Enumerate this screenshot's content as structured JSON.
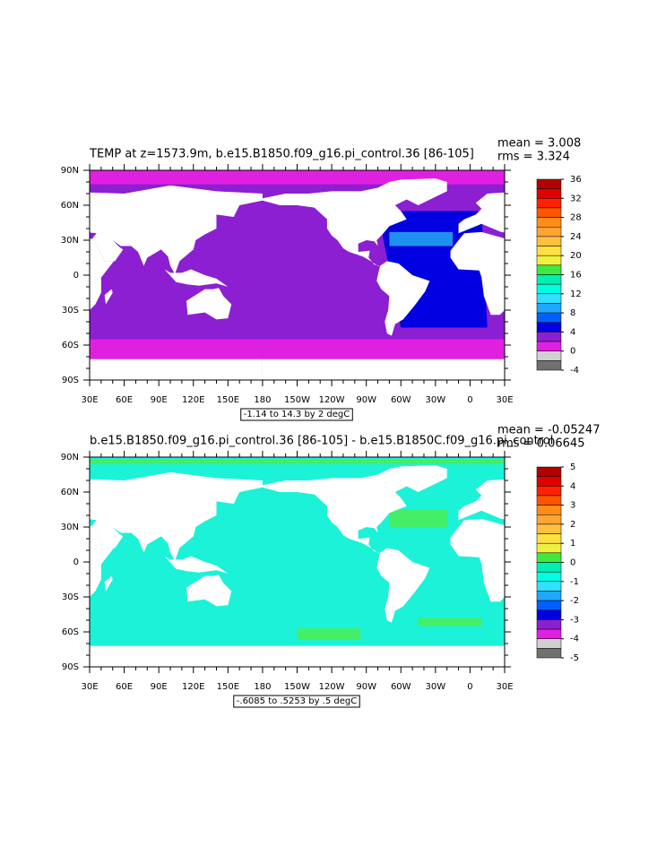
{
  "maps": [
    {
      "title": "TEMP at z=1573.9m, b.e15.B1850.f09_g16.pi_control.36 [86-105]",
      "mean": "mean = 3.008",
      "rms": "rms = 3.324",
      "info": "-1.14 to 14.3 by 2 degC",
      "lat_labels": [
        "90N",
        "60N",
        "30N",
        "0",
        "30S",
        "60S",
        "90S"
      ],
      "lon_labels": [
        "30E",
        "60E",
        "90E",
        "120E",
        "150E",
        "180",
        "150W",
        "120W",
        "90W",
        "60W",
        "30W",
        "0",
        "30E"
      ],
      "colorbar": {
        "labels": [
          36,
          32,
          28,
          24,
          20,
          16,
          12,
          8,
          4,
          0,
          -4
        ],
        "colors": [
          "#b40000",
          "#e00000",
          "#ff2200",
          "#ff5500",
          "#ff8c1a",
          "#ffa533",
          "#ffc040",
          "#ffe040",
          "#f0f040",
          "#40e840",
          "#00f0b0",
          "#00ffe0",
          "#30e0ff",
          "#20a8ff",
          "#0060ff",
          "#0000e0",
          "#8c1fd2",
          "#e020e0",
          "#d0d0d0",
          "#707070"
        ]
      }
    },
    {
      "title": "b.e15.B1850.f09_g16.pi_control.36 [86-105] - b.e15.B1850C.f09_g16.pi_control",
      "mean": "mean = -0.05247",
      "rms": "rms = 0.06645",
      "info": "-.6085 to .5253 by .5 degC",
      "lat_labels": [
        "90N",
        "60N",
        "30N",
        "0",
        "30S",
        "60S",
        "90S"
      ],
      "lon_labels": [
        "30E",
        "60E",
        "90E",
        "120E",
        "150E",
        "180",
        "150W",
        "120W",
        "90W",
        "60W",
        "30W",
        "0",
        "30E"
      ],
      "colorbar": {
        "labels": [
          5,
          4,
          3,
          2,
          1,
          0,
          -1,
          -2,
          -3,
          -4,
          -5
        ],
        "colors": [
          "#b40000",
          "#e00000",
          "#ff2200",
          "#ff5500",
          "#ff8c1a",
          "#ffa533",
          "#ffc040",
          "#ffe040",
          "#f0f040",
          "#40e840",
          "#00f0b0",
          "#00ffe0",
          "#30e0ff",
          "#20a8ff",
          "#0060ff",
          "#0000e0",
          "#8c1fd2",
          "#e020e0",
          "#d0d0d0",
          "#707070"
        ]
      }
    }
  ]
}
